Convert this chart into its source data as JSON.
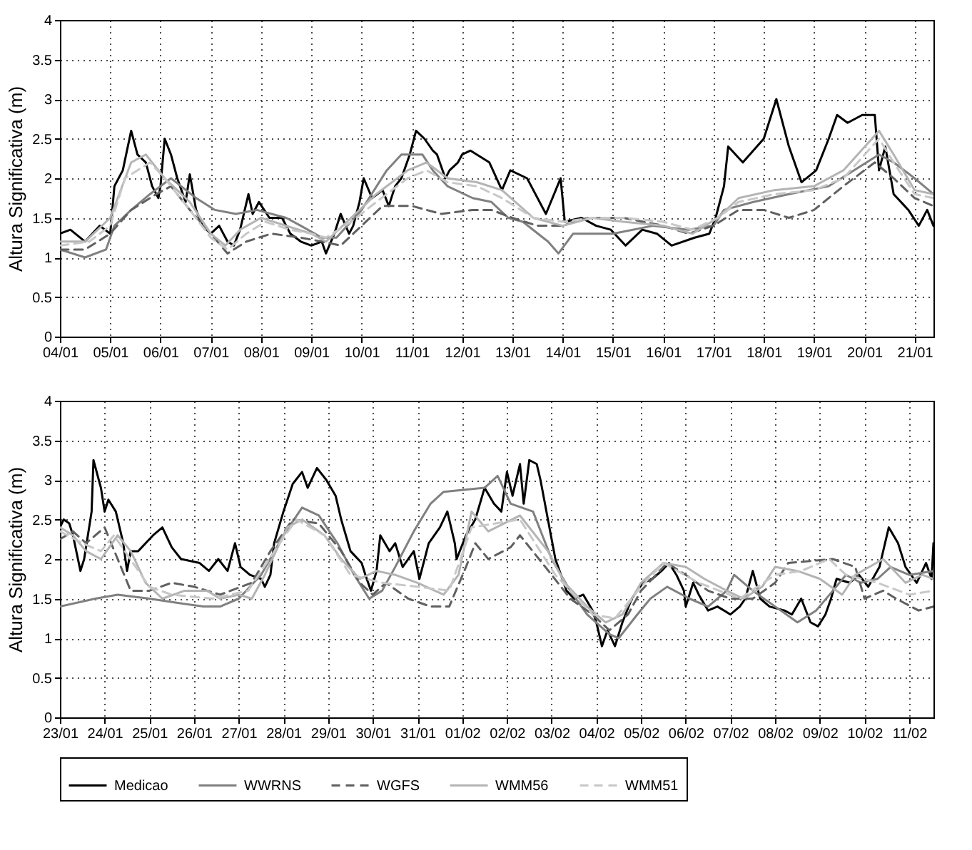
{
  "chart_data": [
    {
      "type": "line",
      "ylabel": "Altura Significativa (m)",
      "ylim": [
        0,
        4
      ],
      "yticks": [
        0,
        0.5,
        1,
        1.5,
        2,
        2.5,
        3,
        3.5,
        4
      ],
      "grid": true,
      "xlim": [
        "--01-04",
        "--01-21T09:00"
      ],
      "xticks": [
        {
          "value": "--01-04",
          "label": "04/01"
        },
        {
          "value": "--01-05",
          "label": "05/01"
        },
        {
          "value": "--01-06",
          "label": "06/01"
        },
        {
          "value": "--01-07",
          "label": "07/01"
        },
        {
          "value": "--01-08",
          "label": "08/01"
        },
        {
          "value": "--01-09",
          "label": "09/01"
        },
        {
          "value": "--01-10",
          "label": "10/01"
        },
        {
          "value": "--01-11",
          "label": "11/01"
        },
        {
          "value": "--01-12",
          "label": "12/01"
        },
        {
          "value": "--01-13",
          "label": "13/01"
        },
        {
          "value": "--01-14",
          "label": "14/01"
        },
        {
          "value": "--01-15",
          "label": "15/01"
        },
        {
          "value": "--01-16",
          "label": "16/01"
        },
        {
          "value": "--01-17",
          "label": "17/01"
        },
        {
          "value": "--01-18",
          "label": "18/01"
        },
        {
          "value": "--01-19",
          "label": "19/01"
        },
        {
          "value": "--01-20",
          "label": "20/01"
        },
        {
          "value": "--01-21",
          "label": "21/01"
        }
      ],
      "series": [
        {
          "color": "#000000",
          "line_style": "solid",
          "x": [
            "--01-04T00:00",
            "--01-04T05:00",
            "--01-04T12:00",
            "--01-04T19:00",
            "--01-05T00:00",
            "--01-05T02:00",
            "--01-05T06:00",
            "--01-05T10:00",
            "--01-05T13:00",
            "--01-05T17:00",
            "--01-05T20:00",
            "--01-05T23:00",
            "--01-06T00:00",
            "--01-06T02:00",
            "--01-06T05:00",
            "--01-06T08:00",
            "--01-06T12:00",
            "--01-06T14:00",
            "--01-06T17:00",
            "--01-06T20:00",
            "--01-07T00:00",
            "--01-07T04:00",
            "--01-07T08:00",
            "--01-07T11:00",
            "--01-07T14:00",
            "--01-07T18:00",
            "--01-07T20:00",
            "--01-07T23:00",
            "--01-08T04:00",
            "--01-08T10:00",
            "--01-08T14:00",
            "--01-08T19:00",
            "--01-09T00:00",
            "--01-09T05:00",
            "--01-09T07:00",
            "--01-09T11:00",
            "--01-09T14:00",
            "--01-09T18:00",
            "--01-09T20:00",
            "--01-09T23:00",
            "--01-10T01:00",
            "--01-10T05:00",
            "--01-10T10:00",
            "--01-10T13:00",
            "--01-10T16:00",
            "--01-10T19:00",
            "--01-10T23:00",
            "--01-11T02:00",
            "--01-11T06:00",
            "--01-11T10:00",
            "--01-11T12:00",
            "--01-11T16:00",
            "--01-11T18:00",
            "--01-11T22:00",
            "--01-12T00:00",
            "--01-12T04:00",
            "--01-12T13:00",
            "--01-12T19:00",
            "--01-12T23:00",
            "--01-13T07:00",
            "--01-13T16:00",
            "--01-13T23:00",
            "--01-14T01:00",
            "--01-14T09:00",
            "--01-14T16:00",
            "--01-14T23:00",
            "--01-15T06:00",
            "--01-15T14:00",
            "--01-15T21:00",
            "--01-16T04:00",
            "--01-16T15:00",
            "--01-16T22:00",
            "--01-17T01:00",
            "--01-17T05:00",
            "--01-17T07:00",
            "--01-17T14:00",
            "--01-18T00:00",
            "--01-18T06:00",
            "--01-18T12:00",
            "--01-18T18:00",
            "--01-19T01:00",
            "--01-19T07:00",
            "--01-19T11:00",
            "--01-19T16:00",
            "--01-19T23:00",
            "--01-20T05:00",
            "--01-20T07:00",
            "--01-20T10:00",
            "--01-20T14:00",
            "--01-20T21:00",
            "--01-21T02:00",
            "--01-21T06:00",
            "--01-21T09:00"
          ],
          "values": [
            1.3,
            1.35,
            1.2,
            1.4,
            1.3,
            1.9,
            2.1,
            2.6,
            2.3,
            2.2,
            1.9,
            1.75,
            1.9,
            2.5,
            2.3,
            2.0,
            1.7,
            2.05,
            1.6,
            1.4,
            1.3,
            1.4,
            1.2,
            1.15,
            1.35,
            1.8,
            1.55,
            1.7,
            1.5,
            1.5,
            1.3,
            1.2,
            1.15,
            1.2,
            1.05,
            1.3,
            1.55,
            1.3,
            1.4,
            1.7,
            2.0,
            1.75,
            1.85,
            1.65,
            1.9,
            2.0,
            2.3,
            2.6,
            2.5,
            2.35,
            2.3,
            2.0,
            2.1,
            2.2,
            2.3,
            2.35,
            2.2,
            1.85,
            2.1,
            2.0,
            1.55,
            2.0,
            1.45,
            1.5,
            1.4,
            1.35,
            1.15,
            1.35,
            1.3,
            1.15,
            1.25,
            1.3,
            1.5,
            1.9,
            2.4,
            2.2,
            2.5,
            3.0,
            2.4,
            1.95,
            2.1,
            2.5,
            2.8,
            2.7,
            2.8,
            2.8,
            2.1,
            2.4,
            1.8,
            1.6,
            1.4,
            1.6,
            1.4
          ]
        },
        {
          "color": "#808080",
          "line_style": "solid",
          "x": [
            "--01-04T00:00",
            "--01-04T12:00",
            "--01-04T22:00",
            "--01-05T02:00",
            "--01-05T10:00",
            "--01-05T19:00",
            "--01-06T05:00",
            "--01-06T17:00",
            "--01-07T02:00",
            "--01-07T12:00",
            "--01-07T22:00",
            "--01-08T12:00",
            "--01-08T19:00",
            "--01-09T05:00",
            "--01-09T12:00",
            "--01-10T00:00",
            "--01-10T12:00",
            "--01-10T19:00",
            "--01-11T05:00",
            "--01-11T10:00",
            "--01-11T17:00",
            "--01-12T05:00",
            "--01-12T14:00",
            "--01-12T22:00",
            "--01-13T05:00",
            "--01-13T17:00",
            "--01-13T22:00",
            "--01-14T05:00",
            "--01-15T00:00",
            "--01-15T19:00",
            "--01-16T12:00",
            "--01-17T00:00",
            "--01-17T05:00",
            "--01-17T19:00",
            "--01-18T12:00",
            "--01-19T07:00",
            "--01-19T19:00",
            "--01-20T07:00",
            "--01-20T14:00",
            "--01-21T00:00",
            "--01-21T09:00"
          ],
          "values": [
            1.1,
            1.0,
            1.1,
            1.4,
            1.6,
            1.8,
            2.0,
            1.75,
            1.6,
            1.55,
            1.6,
            1.5,
            1.4,
            1.25,
            1.25,
            1.6,
            2.1,
            2.3,
            2.3,
            2.1,
            1.9,
            1.75,
            1.7,
            1.5,
            1.45,
            1.2,
            1.05,
            1.3,
            1.3,
            1.4,
            1.35,
            1.4,
            1.6,
            1.7,
            1.8,
            1.9,
            2.1,
            2.3,
            2.2,
            2.0,
            1.8
          ]
        },
        {
          "color": "#606060",
          "line_style": "dashed",
          "x": [
            "--01-04T00:00",
            "--01-04T12:00",
            "--01-05T00:00",
            "--01-05T10:00",
            "--01-05T22:00",
            "--01-06T05:00",
            "--01-06T14:00",
            "--01-07T00:00",
            "--01-07T08:00",
            "--01-07T17:00",
            "--01-08T05:00",
            "--01-08T19:00",
            "--01-09T05:00",
            "--01-09T14:00",
            "--01-10T00:00",
            "--01-10T10:00",
            "--01-11T00:00",
            "--01-11T14:00",
            "--01-12T05:00",
            "--01-12T14:00",
            "--01-13T00:00",
            "--01-13T12:00",
            "--01-14T00:00",
            "--01-14T12:00",
            "--01-15T05:00",
            "--01-16T00:00",
            "--01-16T12:00",
            "--01-17T00:00",
            "--01-17T12:00",
            "--01-18T00:00",
            "--01-18T12:00",
            "--01-19T00:00",
            "--01-19T14:00",
            "--01-19T19:00",
            "--01-20T05:00",
            "--01-20T14:00",
            "--01-21T00:00",
            "--01-21T09:00"
          ],
          "values": [
            1.1,
            1.1,
            1.3,
            1.6,
            1.8,
            1.9,
            1.6,
            1.3,
            1.05,
            1.2,
            1.3,
            1.25,
            1.2,
            1.15,
            1.4,
            1.65,
            1.65,
            1.55,
            1.6,
            1.6,
            1.5,
            1.4,
            1.4,
            1.5,
            1.5,
            1.4,
            1.3,
            1.4,
            1.6,
            1.6,
            1.5,
            1.6,
            1.9,
            2.0,
            2.2,
            2.0,
            1.75,
            1.65
          ]
        },
        {
          "color": "#b4b4b4",
          "line_style": "solid",
          "x": [
            "--01-04T00:00",
            "--01-04T12:00",
            "--01-05T00:00",
            "--01-05T10:00",
            "--01-05T17:00",
            "--01-06T02:00",
            "--01-06T14:00",
            "--01-07T00:00",
            "--01-07T07:00",
            "--01-07T14:00",
            "--01-08T00:00",
            "--01-08T12:00",
            "--01-09T00:00",
            "--01-09T07:00",
            "--01-09T19:00",
            "--01-10T07:00",
            "--01-10T22:00",
            "--01-11T07:00",
            "--01-11T17:00",
            "--01-12T07:00",
            "--01-12T19:00",
            "--01-13T10:00",
            "--01-14T00:00",
            "--01-14T14:00",
            "--01-15T05:00",
            "--01-16T00:00",
            "--01-16T14:00",
            "--01-17T02:00",
            "--01-17T12:00",
            "--01-18T05:00",
            "--01-19T00:00",
            "--01-19T14:00",
            "--01-20T07:00",
            "--01-20T14:00",
            "--01-21T00:00",
            "--01-21T09:00"
          ],
          "values": [
            1.2,
            1.2,
            1.5,
            2.2,
            2.3,
            2.0,
            1.7,
            1.3,
            1.15,
            1.35,
            1.5,
            1.4,
            1.3,
            1.2,
            1.5,
            1.8,
            2.1,
            2.2,
            2.0,
            1.95,
            1.85,
            1.5,
            1.4,
            1.5,
            1.45,
            1.4,
            1.3,
            1.5,
            1.75,
            1.85,
            1.9,
            2.1,
            2.6,
            2.3,
            1.85,
            1.8
          ]
        },
        {
          "color": "#c8c8c8",
          "line_style": "dashed",
          "x": [
            "--01-04T00:00",
            "--01-04T14:00",
            "--01-05T00:00",
            "--01-05T07:00",
            "--01-05T19:00",
            "--01-06T02:00",
            "--01-06T14:00",
            "--01-07T00:00",
            "--01-07T08:00",
            "--01-07T17:00",
            "--01-08T02:00",
            "--01-08T14:00",
            "--01-09T00:00",
            "--01-09T07:00",
            "--01-09T19:00",
            "--01-10T07:00",
            "--01-10T22:00",
            "--01-11T07:00",
            "--01-11T17:00",
            "--01-12T07:00",
            "--01-12T19:00",
            "--01-13T10:00",
            "--01-14T00:00",
            "--01-14T14:00",
            "--01-15T05:00",
            "--01-16T00:00",
            "--01-16T14:00",
            "--01-17T02:00",
            "--01-17T12:00",
            "--01-18T05:00",
            "--01-19T00:00",
            "--01-19T14:00",
            "--01-20T07:00",
            "--01-20T14:00",
            "--01-21T00:00",
            "--01-21T09:00"
          ],
          "values": [
            1.15,
            1.2,
            1.4,
            2.0,
            2.2,
            2.0,
            1.6,
            1.25,
            1.1,
            1.3,
            1.45,
            1.35,
            1.3,
            1.25,
            1.45,
            1.7,
            2.0,
            2.1,
            1.95,
            1.9,
            1.75,
            1.5,
            1.45,
            1.5,
            1.5,
            1.45,
            1.35,
            1.5,
            1.7,
            1.8,
            1.85,
            2.0,
            2.5,
            2.2,
            1.8,
            1.75
          ]
        }
      ]
    },
    {
      "type": "line",
      "ylabel": "Altura Significativa (m)",
      "ylim": [
        0,
        4
      ],
      "yticks": [
        0,
        0.5,
        1,
        1.5,
        2,
        2.5,
        3,
        3.5,
        4
      ],
      "grid": true,
      "legend": "bottom",
      "xlim": [
        "--01-23",
        "--02-11T13:00"
      ],
      "xticks": [
        {
          "value": "--01-23",
          "label": "23/01"
        },
        {
          "value": "--01-24",
          "label": "24/01"
        },
        {
          "value": "--01-25",
          "label": "25/01"
        },
        {
          "value": "--01-26",
          "label": "26/01"
        },
        {
          "value": "--01-27",
          "label": "27/01"
        },
        {
          "value": "--01-28",
          "label": "28/01"
        },
        {
          "value": "--01-29",
          "label": "29/01"
        },
        {
          "value": "--01-30",
          "label": "30/01"
        },
        {
          "value": "--01-31",
          "label": "31/01"
        },
        {
          "value": "--02-01",
          "label": "01/02"
        },
        {
          "value": "--02-02",
          "label": "02/02"
        },
        {
          "value": "--02-03",
          "label": "03/02"
        },
        {
          "value": "--02-04",
          "label": "04/02"
        },
        {
          "value": "--02-05",
          "label": "05/02"
        },
        {
          "value": "--02-06",
          "label": "06/02"
        },
        {
          "value": "--02-07",
          "label": "07/02"
        },
        {
          "value": "--02-08",
          "label": "08/02"
        },
        {
          "value": "--02-09",
          "label": "09/02"
        },
        {
          "value": "--02-10",
          "label": "10/02"
        },
        {
          "value": "--02-11",
          "label": "11/02"
        }
      ],
      "series": [
        {
          "name": "Medicao",
          "color": "#000000",
          "line_style": "solid",
          "x": [
            "--01-23T00:00",
            "--01-23T02:00",
            "--01-23T05:00",
            "--01-23T07:00",
            "--01-23T11:00",
            "--01-23T13:00",
            "--01-23T15:00",
            "--01-23T17:00",
            "--01-23T18:00",
            "--01-23T22:00",
            "--01-24T00:00",
            "--01-24T02:00",
            "--01-24T06:00",
            "--01-24T10:00",
            "--01-24T12:00",
            "--01-24T14:00",
            "--01-24T18:00",
            "--01-25T02:00",
            "--01-25T07:00",
            "--01-25T12:00",
            "--01-25T17:00",
            "--01-26T03:00",
            "--01-26T08:00",
            "--01-26T13:00",
            "--01-26T18:00",
            "--01-26T22:00",
            "--01-27T01:00",
            "--01-27T06:00",
            "--01-27T12:00",
            "--01-27T14:00",
            "--01-27T17:00",
            "--01-27T19:00",
            "--01-28T00:00",
            "--01-28T05:00",
            "--01-28T10:00",
            "--01-28T13:00",
            "--01-28T18:00",
            "--01-28T23:00",
            "--01-29T04:00",
            "--01-29T07:00",
            "--01-29T12:00",
            "--01-29T18:00",
            "--01-29T20:00",
            "--01-29T23:00",
            "--01-30T02:00",
            "--01-30T04:00",
            "--01-30T09:00",
            "--01-30T12:00",
            "--01-30T16:00",
            "--01-30T22:00",
            "--01-31T01:00",
            "--01-31T06:00",
            "--01-31T12:00",
            "--01-31T16:00",
            "--01-31T20:00",
            "--01-31T21:00",
            "--02-01T02:00",
            "--02-01T07:00",
            "--02-01T12:00",
            "--02-01T17:00",
            "--02-01T21:00",
            "--02-02T00:00",
            "--02-02T03:00",
            "--02-02T07:00",
            "--02-02T09:00",
            "--02-02T12:00",
            "--02-02T16:00",
            "--02-02T18:00",
            "--02-02T22:00",
            "--02-03T02:00",
            "--02-03T05:00",
            "--02-03T08:00",
            "--02-03T12:00",
            "--02-03T17:00",
            "--02-03T22:00",
            "--02-04T00:00",
            "--02-04T03:00",
            "--02-04T06:00",
            "--02-04T10:00",
            "--02-04T14:00",
            "--02-04T19:00",
            "--02-05T01:00",
            "--02-05T06:00",
            "--02-05T11:00",
            "--02-05T15:00",
            "--02-05T19:00",
            "--02-05T23:00",
            "--02-06T00:00",
            "--02-06T04:00",
            "--02-06T07:00",
            "--02-06T12:00",
            "--02-06T17:00",
            "--02-07T00:00",
            "--02-07T05:00",
            "--02-07T08:00",
            "--02-07T12:00",
            "--02-07T16:00",
            "--02-07T21:00",
            "--02-08T05:00",
            "--02-08T09:00",
            "--02-08T14:00",
            "--02-08T19:00",
            "--02-08T23:00",
            "--02-09T03:00",
            "--02-09T06:00",
            "--02-09T09:00",
            "--02-09T16:00",
            "--02-09T21:00",
            "--02-10T02:00",
            "--02-10T08:00",
            "--02-10T13:00",
            "--02-10T18:00",
            "--02-10T22:00",
            "--02-11T04:00",
            "--02-11T09:00",
            "--02-11T12:00",
            "--02-11T13:00"
          ],
          "values": [
            2.4,
            2.5,
            2.45,
            2.3,
            1.85,
            2.0,
            2.3,
            2.6,
            3.25,
            2.9,
            2.6,
            2.75,
            2.6,
            2.2,
            1.85,
            2.1,
            2.1,
            2.3,
            2.4,
            2.15,
            2.0,
            1.95,
            1.85,
            2.0,
            1.85,
            2.2,
            1.9,
            1.8,
            1.75,
            1.65,
            1.8,
            2.2,
            2.6,
            2.95,
            3.1,
            2.9,
            3.15,
            3.0,
            2.8,
            2.5,
            2.1,
            1.95,
            1.8,
            1.6,
            1.85,
            2.3,
            2.1,
            2.2,
            1.9,
            2.1,
            1.75,
            2.2,
            2.4,
            2.6,
            2.2,
            2.0,
            2.3,
            2.5,
            2.9,
            2.7,
            2.6,
            3.1,
            2.8,
            3.2,
            2.7,
            3.25,
            3.2,
            3.0,
            2.5,
            2.0,
            1.8,
            1.6,
            1.5,
            1.55,
            1.35,
            1.2,
            0.9,
            1.1,
            0.9,
            1.2,
            1.5,
            1.7,
            1.75,
            1.85,
            1.95,
            1.8,
            1.6,
            1.4,
            1.7,
            1.55,
            1.35,
            1.4,
            1.3,
            1.4,
            1.5,
            1.85,
            1.5,
            1.4,
            1.35,
            1.3,
            1.5,
            1.2,
            1.15,
            1.3,
            1.5,
            1.75,
            1.7,
            1.8,
            1.65,
            1.9,
            2.4,
            2.2,
            1.9,
            1.7,
            1.95,
            1.75,
            2.2
          ]
        },
        {
          "name": "WWRNS",
          "color": "#808080",
          "line_style": "solid",
          "x": [
            "--01-23T00:00",
            "--01-23T19:00",
            "--01-24T07:00",
            "--01-25T00:00",
            "--01-25T14:00",
            "--01-26T05:00",
            "--01-26T14:00",
            "--01-27T00:00",
            "--01-27T12:00",
            "--01-28T00:00",
            "--01-28T10:00",
            "--01-28T19:00",
            "--01-29T05:00",
            "--01-29T14:00",
            "--01-29T22:00",
            "--01-30T05:00",
            "--01-30T12:00",
            "--01-30T22:00",
            "--01-31T07:00",
            "--01-31T14:00",
            "--02-01T12:00",
            "--02-01T19:00",
            "--02-02T02:00",
            "--02-02T14:00",
            "--02-03T00:00",
            "--02-03T10:00",
            "--02-03T19:00",
            "--02-04T07:00",
            "--02-04T12:00",
            "--02-04T22:00",
            "--02-05T05:00",
            "--02-05T14:00",
            "--02-06T02:00",
            "--02-06T12:00",
            "--02-06T22:00",
            "--02-07T02:00",
            "--02-07T12:00",
            "--02-08T00:00",
            "--02-08T12:00",
            "--02-08T22:00",
            "--02-09T07:00",
            "--02-09T14:00",
            "--02-09T22:00",
            "--02-10T07:00",
            "--02-10T14:00",
            "--02-11T00:00",
            "--02-11T13:00"
          ],
          "values": [
            1.4,
            1.5,
            1.55,
            1.5,
            1.45,
            1.4,
            1.4,
            1.5,
            1.8,
            2.3,
            2.65,
            2.55,
            2.2,
            1.8,
            1.5,
            1.6,
            1.9,
            2.35,
            2.7,
            2.85,
            2.9,
            3.05,
            2.7,
            2.6,
            2.0,
            1.6,
            1.3,
            1.05,
            1.0,
            1.3,
            1.5,
            1.65,
            1.5,
            1.4,
            1.6,
            1.8,
            1.6,
            1.4,
            1.2,
            1.35,
            1.6,
            1.8,
            1.7,
            1.75,
            1.9,
            1.8,
            1.85
          ]
        },
        {
          "name": "WGFS",
          "color": "#606060",
          "line_style": "dashed",
          "x": [
            "--01-23T00:00",
            "--01-23T07:00",
            "--01-23T14:00",
            "--01-24T00:00",
            "--01-24T07:00",
            "--01-24T14:00",
            "--01-25T00:00",
            "--01-25T12:00",
            "--01-26T00:00",
            "--01-26T14:00",
            "--01-27T07:00",
            "--01-27T17:00",
            "--01-28T05:00",
            "--01-28T19:00",
            "--01-29T07:00",
            "--01-29T17:00",
            "--01-30T00:00",
            "--01-30T07:00",
            "--01-30T19:00",
            "--01-31T07:00",
            "--01-31T17:00",
            "--02-01T02:00",
            "--02-01T07:00",
            "--02-01T14:00",
            "--02-02T02:00",
            "--02-02T07:00",
            "--02-03T00:00",
            "--02-03T10:00",
            "--02-03T22:00",
            "--02-04T07:00",
            "--02-04T17:00",
            "--02-05T00:00",
            "--02-05T14:00",
            "--02-06T00:00",
            "--02-06T12:00",
            "--02-07T00:00",
            "--02-07T12:00",
            "--02-08T00:00",
            "--02-08T07:00",
            "--02-09T07:00",
            "--02-09T19:00",
            "--02-10T00:00",
            "--02-10T10:00",
            "--02-10T17:00",
            "--02-11T05:00",
            "--02-11T13:00"
          ],
          "values": [
            2.25,
            2.35,
            2.2,
            2.4,
            2.0,
            1.6,
            1.6,
            1.7,
            1.65,
            1.55,
            1.7,
            2.1,
            2.5,
            2.45,
            2.1,
            1.7,
            1.55,
            1.7,
            1.5,
            1.4,
            1.4,
            1.9,
            2.2,
            2.0,
            2.15,
            2.3,
            1.8,
            1.5,
            1.3,
            1.1,
            1.3,
            1.6,
            1.95,
            1.8,
            1.6,
            1.5,
            1.5,
            1.7,
            1.95,
            2.0,
            1.9,
            1.5,
            1.6,
            1.5,
            1.35,
            1.4
          ]
        },
        {
          "name": "WMM56",
          "color": "#b4b4b4",
          "line_style": "solid",
          "x": [
            "--01-23T00:00",
            "--01-23T07:00",
            "--01-23T14:00",
            "--01-23T22:00",
            "--01-24T07:00",
            "--01-24T14:00",
            "--01-24T22:00",
            "--01-25T07:00",
            "--01-25T19:00",
            "--01-26T07:00",
            "--01-26T14:00",
            "--01-27T00:00",
            "--01-27T07:00",
            "--01-27T14:00",
            "--01-28T02:00",
            "--01-28T10:00",
            "--01-28T22:00",
            "--01-29T07:00",
            "--01-29T17:00",
            "--01-30T02:00",
            "--01-30T12:00",
            "--01-31T00:00",
            "--01-31T14:00",
            "--01-31T22:00",
            "--02-01T05:00",
            "--02-01T14:00",
            "--02-02T07:00",
            "--02-02T22:00",
            "--02-03T07:00",
            "--02-03T19:00",
            "--02-04T05:00",
            "--02-04T14:00",
            "--02-05T00:00",
            "--02-05T12:00",
            "--02-06T00:00",
            "--02-06T10:00",
            "--02-06T22:00",
            "--02-07T07:00",
            "--02-07T17:00",
            "--02-08T00:00",
            "--02-08T12:00",
            "--02-09T00:00",
            "--02-09T12:00",
            "--02-09T19:00",
            "--02-10T10:00",
            "--02-10T22:00",
            "--02-11T07:00",
            "--02-11T13:00"
          ],
          "values": [
            2.4,
            2.3,
            2.1,
            2.0,
            2.3,
            2.1,
            1.7,
            1.5,
            1.6,
            1.6,
            1.5,
            1.55,
            1.5,
            1.8,
            2.4,
            2.5,
            2.3,
            2.0,
            1.75,
            1.85,
            1.8,
            1.7,
            1.55,
            1.8,
            2.6,
            2.35,
            2.55,
            2.1,
            1.7,
            1.4,
            1.2,
            1.3,
            1.7,
            1.95,
            1.9,
            1.75,
            1.6,
            1.5,
            1.65,
            1.9,
            1.85,
            1.75,
            1.55,
            1.8,
            2.0,
            1.7,
            1.8,
            1.75
          ]
        },
        {
          "name": "WMM51",
          "color": "#c8c8c8",
          "line_style": "dashed",
          "x": [
            "--01-23T00:00",
            "--01-23T12:00",
            "--01-23T22:00",
            "--01-24T05:00",
            "--01-25T00:00",
            "--01-25T12:00",
            "--01-26T10:00",
            "--01-27T05:00",
            "--01-27T22:00",
            "--01-28T07:00",
            "--01-28T22:00",
            "--01-29T12:00",
            "--01-30T05:00",
            "--01-31T00:00",
            "--01-31T17:00",
            "--02-01T05:00",
            "--02-02T07:00",
            "--02-03T02:00",
            "--02-03T22:00",
            "--02-04T10:00",
            "--02-05T00:00",
            "--02-05T12:00",
            "--02-06T07:00",
            "--02-07T05:00",
            "--02-08T00:00",
            "--02-08T14:00",
            "--02-09T05:00",
            "--02-09T14:00",
            "--02-10T07:00",
            "--02-11T00:00",
            "--02-11T13:00"
          ],
          "values": [
            2.35,
            2.2,
            2.1,
            2.3,
            1.65,
            1.55,
            1.5,
            1.6,
            2.2,
            2.5,
            2.3,
            1.8,
            1.7,
            1.65,
            1.6,
            2.4,
            2.5,
            1.8,
            1.3,
            1.25,
            1.65,
            1.95,
            1.7,
            1.5,
            1.8,
            1.85,
            2.0,
            1.8,
            1.7,
            1.55,
            1.6
          ]
        }
      ]
    }
  ]
}
